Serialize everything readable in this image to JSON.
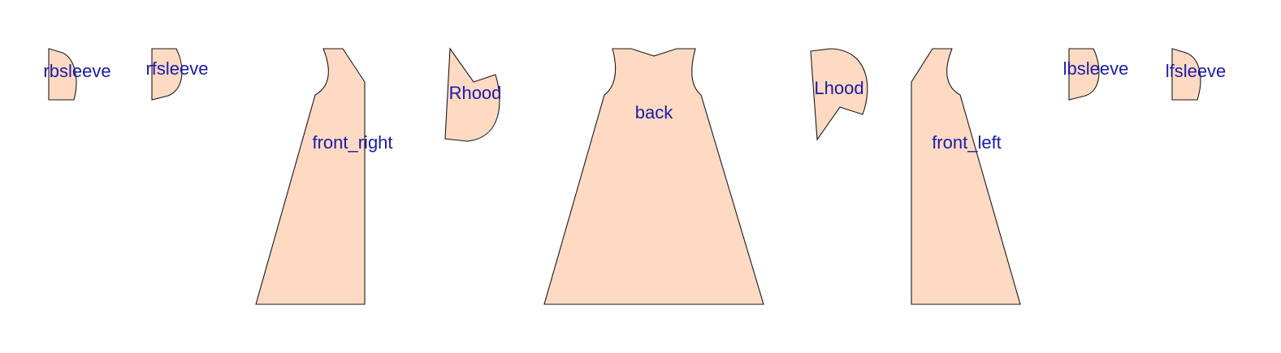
{
  "colors": {
    "piece_fill": "#ffdac3",
    "outline": "#1a1a1a",
    "label": "#1a1aa8",
    "background": "#ffffff"
  },
  "pieces": [
    {
      "id": "rbsleeve",
      "label": "rbsleeve"
    },
    {
      "id": "rfsleeve",
      "label": "rfsleeve"
    },
    {
      "id": "front_right",
      "label": "front_right"
    },
    {
      "id": "rhood",
      "label": "Rhood"
    },
    {
      "id": "back",
      "label": "back"
    },
    {
      "id": "lhood",
      "label": "Lhood"
    },
    {
      "id": "front_left",
      "label": "front_left"
    },
    {
      "id": "lbsleeve",
      "label": "lbsleeve"
    },
    {
      "id": "lfsleeve",
      "label": "lfsleeve"
    }
  ]
}
